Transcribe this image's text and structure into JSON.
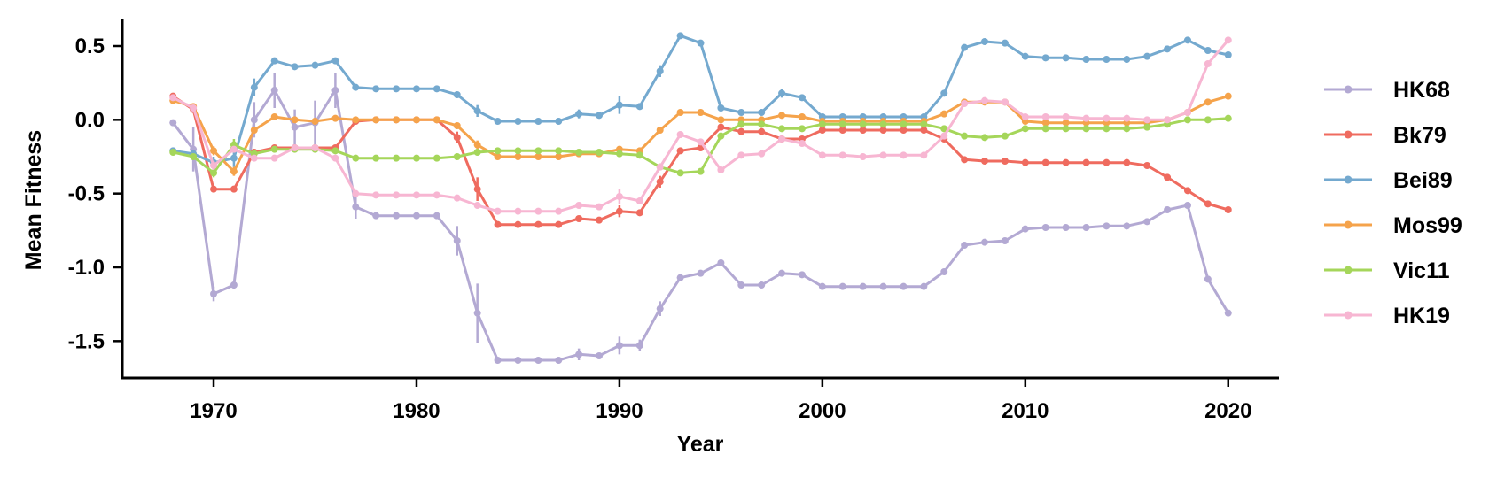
{
  "chart_data": {
    "type": "line",
    "title": "",
    "xlabel": "Year",
    "ylabel": "Mean Fitness",
    "xlim": [
      1965.5,
      2022.5
    ],
    "ylim": [
      -1.75,
      0.68
    ],
    "x_ticks": [
      1970,
      1980,
      1990,
      2000,
      2010,
      2020
    ],
    "x_tick_labels": [
      "1970",
      "1980",
      "1990",
      "2000",
      "2010",
      "2020"
    ],
    "y_ticks": [
      0.5,
      0.0,
      -0.5,
      -1.0,
      -1.5
    ],
    "y_tick_labels": [
      "0.5",
      "0.0",
      "-0.5",
      "-1.0",
      "-1.5"
    ],
    "grid": false,
    "legend_position": "right",
    "x": [
      1968,
      1969,
      1970,
      1971,
      1972,
      1973,
      1974,
      1975,
      1976,
      1977,
      1978,
      1979,
      1980,
      1981,
      1982,
      1983,
      1984,
      1985,
      1986,
      1987,
      1988,
      1989,
      1990,
      1991,
      1992,
      1993,
      1994,
      1995,
      1996,
      1997,
      1998,
      1999,
      2000,
      2001,
      2002,
      2003,
      2004,
      2005,
      2006,
      2007,
      2008,
      2009,
      2010,
      2011,
      2012,
      2013,
      2014,
      2015,
      2016,
      2017,
      2018,
      2019,
      2020
    ],
    "series": [
      {
        "name": "HK68",
        "color": "#b3a9d3",
        "values": [
          -0.02,
          -0.2,
          -1.18,
          -1.12,
          0.0,
          0.2,
          -0.05,
          -0.02,
          0.2,
          -0.59,
          -0.65,
          -0.65,
          -0.65,
          -0.65,
          -0.82,
          -1.31,
          -1.63,
          -1.63,
          -1.63,
          -1.63,
          -1.59,
          -1.6,
          -1.53,
          -1.53,
          -1.28,
          -1.07,
          -1.04,
          -0.97,
          -1.12,
          -1.12,
          -1.04,
          -1.05,
          -1.13,
          -1.13,
          -1.13,
          -1.13,
          -1.13,
          -1.13,
          -1.03,
          -0.85,
          -0.83,
          -0.82,
          -0.74,
          -0.73,
          -0.73,
          -0.73,
          -0.72,
          -0.72,
          -0.69,
          -0.61,
          -0.58,
          -1.08,
          -1.31
        ],
        "errors": [
          0.02,
          0.15,
          0.05,
          0.03,
          0.12,
          0.12,
          0.12,
          0.15,
          0.12,
          0.08,
          0.02,
          0.02,
          0.02,
          0.02,
          0.1,
          0.2,
          0.02,
          0.02,
          0.02,
          0.02,
          0.04,
          0.02,
          0.06,
          0.04,
          0.05,
          0.02,
          0.02,
          0.02,
          0.02,
          0.02,
          0.02,
          0.02,
          0.02,
          0.02,
          0.02,
          0.02,
          0.02,
          0.02,
          0.02,
          0.02,
          0.02,
          0.02,
          0.02,
          0.02,
          0.02,
          0.02,
          0.02,
          0.02,
          0.02,
          0.02,
          0.02,
          0.02,
          0.02
        ]
      },
      {
        "name": "Bk79",
        "color": "#ef6b5f",
        "values": [
          0.16,
          0.07,
          -0.47,
          -0.47,
          -0.22,
          -0.19,
          -0.19,
          -0.19,
          -0.19,
          -0.01,
          0.0,
          0.0,
          0.0,
          0.0,
          -0.12,
          -0.47,
          -0.71,
          -0.71,
          -0.71,
          -0.71,
          -0.67,
          -0.68,
          -0.62,
          -0.63,
          -0.42,
          -0.21,
          -0.19,
          -0.05,
          -0.08,
          -0.08,
          -0.13,
          -0.13,
          -0.07,
          -0.07,
          -0.07,
          -0.07,
          -0.07,
          -0.07,
          -0.13,
          -0.27,
          -0.28,
          -0.28,
          -0.29,
          -0.29,
          -0.29,
          -0.29,
          -0.29,
          -0.29,
          -0.31,
          -0.39,
          -0.48,
          -0.57,
          -0.61
        ],
        "errors": [
          0.02,
          0.02,
          0.02,
          0.02,
          0.02,
          0.02,
          0.02,
          0.02,
          0.02,
          0.02,
          0.02,
          0.02,
          0.02,
          0.02,
          0.04,
          0.08,
          0.02,
          0.02,
          0.02,
          0.02,
          0.02,
          0.02,
          0.04,
          0.02,
          0.04,
          0.02,
          0.02,
          0.02,
          0.02,
          0.02,
          0.02,
          0.02,
          0.02,
          0.02,
          0.02,
          0.02,
          0.02,
          0.02,
          0.02,
          0.02,
          0.02,
          0.02,
          0.02,
          0.02,
          0.02,
          0.02,
          0.02,
          0.02,
          0.02,
          0.02,
          0.02,
          0.02,
          0.02
        ]
      },
      {
        "name": "Bei89",
        "color": "#74a9cf",
        "values": [
          -0.21,
          -0.23,
          -0.29,
          -0.26,
          0.22,
          0.4,
          0.36,
          0.37,
          0.4,
          0.22,
          0.21,
          0.21,
          0.21,
          0.21,
          0.17,
          0.06,
          -0.01,
          -0.01,
          -0.01,
          -0.01,
          0.04,
          0.03,
          0.1,
          0.09,
          0.33,
          0.57,
          0.52,
          0.08,
          0.05,
          0.05,
          0.18,
          0.15,
          0.02,
          0.02,
          0.02,
          0.02,
          0.02,
          0.02,
          0.18,
          0.49,
          0.53,
          0.52,
          0.43,
          0.42,
          0.42,
          0.41,
          0.41,
          0.41,
          0.43,
          0.48,
          0.54,
          0.47,
          0.44
        ],
        "errors": [
          0.02,
          0.02,
          0.04,
          0.06,
          0.06,
          0.02,
          0.02,
          0.02,
          0.02,
          0.02,
          0.02,
          0.02,
          0.02,
          0.02,
          0.02,
          0.04,
          0.02,
          0.02,
          0.02,
          0.02,
          0.03,
          0.02,
          0.06,
          0.02,
          0.04,
          0.02,
          0.02,
          0.02,
          0.02,
          0.02,
          0.03,
          0.02,
          0.02,
          0.02,
          0.02,
          0.02,
          0.02,
          0.02,
          0.02,
          0.02,
          0.02,
          0.02,
          0.02,
          0.02,
          0.02,
          0.02,
          0.02,
          0.02,
          0.02,
          0.02,
          0.02,
          0.02,
          0.02
        ]
      },
      {
        "name": "Mos99",
        "color": "#f5a34b",
        "values": [
          0.13,
          0.09,
          -0.21,
          -0.35,
          -0.07,
          0.02,
          0.0,
          -0.01,
          0.01,
          0.0,
          0.0,
          0.0,
          0.0,
          0.0,
          -0.04,
          -0.17,
          -0.25,
          -0.25,
          -0.25,
          -0.25,
          -0.23,
          -0.23,
          -0.2,
          -0.21,
          -0.07,
          0.05,
          0.05,
          0.0,
          0.0,
          0.0,
          0.03,
          0.02,
          -0.01,
          -0.01,
          -0.01,
          -0.01,
          -0.01,
          -0.01,
          0.04,
          0.12,
          0.12,
          0.12,
          -0.01,
          -0.02,
          -0.02,
          -0.02,
          -0.02,
          -0.02,
          -0.02,
          0.0,
          0.05,
          0.12,
          0.16
        ],
        "errors": [
          0.02,
          0.02,
          0.03,
          0.03,
          0.02,
          0.02,
          0.02,
          0.02,
          0.02,
          0.02,
          0.02,
          0.02,
          0.02,
          0.02,
          0.02,
          0.03,
          0.02,
          0.02,
          0.02,
          0.02,
          0.02,
          0.02,
          0.02,
          0.02,
          0.02,
          0.02,
          0.02,
          0.02,
          0.02,
          0.02,
          0.02,
          0.02,
          0.02,
          0.02,
          0.02,
          0.02,
          0.02,
          0.02,
          0.02,
          0.02,
          0.02,
          0.02,
          0.02,
          0.02,
          0.02,
          0.02,
          0.02,
          0.02,
          0.02,
          0.02,
          0.02,
          0.02,
          0.02
        ]
      },
      {
        "name": "Vic11",
        "color": "#a5d65a",
        "values": [
          -0.22,
          -0.25,
          -0.36,
          -0.17,
          -0.23,
          -0.2,
          -0.2,
          -0.2,
          -0.21,
          -0.26,
          -0.26,
          -0.26,
          -0.26,
          -0.26,
          -0.25,
          -0.22,
          -0.21,
          -0.21,
          -0.21,
          -0.21,
          -0.22,
          -0.22,
          -0.23,
          -0.24,
          -0.32,
          -0.36,
          -0.35,
          -0.11,
          -0.03,
          -0.03,
          -0.06,
          -0.06,
          -0.03,
          -0.03,
          -0.03,
          -0.03,
          -0.03,
          -0.03,
          -0.06,
          -0.11,
          -0.12,
          -0.11,
          -0.06,
          -0.06,
          -0.06,
          -0.06,
          -0.06,
          -0.06,
          -0.05,
          -0.03,
          0.0,
          0.0,
          0.01
        ],
        "errors": [
          0.02,
          0.02,
          0.03,
          0.04,
          0.02,
          0.02,
          0.02,
          0.02,
          0.02,
          0.02,
          0.02,
          0.02,
          0.02,
          0.02,
          0.02,
          0.02,
          0.02,
          0.02,
          0.02,
          0.02,
          0.02,
          0.02,
          0.02,
          0.02,
          0.02,
          0.02,
          0.02,
          0.02,
          0.02,
          0.02,
          0.02,
          0.02,
          0.02,
          0.02,
          0.02,
          0.02,
          0.02,
          0.02,
          0.02,
          0.02,
          0.02,
          0.02,
          0.02,
          0.02,
          0.02,
          0.02,
          0.02,
          0.02,
          0.02,
          0.02,
          0.02,
          0.02,
          0.02
        ]
      },
      {
        "name": "HK19",
        "color": "#f7b6d2",
        "values": [
          0.15,
          0.08,
          -0.31,
          -0.2,
          -0.26,
          -0.26,
          -0.19,
          -0.19,
          -0.26,
          -0.5,
          -0.51,
          -0.51,
          -0.51,
          -0.51,
          -0.53,
          -0.58,
          -0.62,
          -0.62,
          -0.62,
          -0.62,
          -0.58,
          -0.59,
          -0.52,
          -0.55,
          -0.32,
          -0.1,
          -0.15,
          -0.34,
          -0.24,
          -0.23,
          -0.13,
          -0.16,
          -0.24,
          -0.24,
          -0.25,
          -0.24,
          -0.24,
          -0.24,
          -0.11,
          0.11,
          0.13,
          0.12,
          0.02,
          0.02,
          0.02,
          0.01,
          0.01,
          0.01,
          0.0,
          0.0,
          0.05,
          0.38,
          0.54
        ],
        "errors": [
          0.02,
          0.02,
          0.03,
          0.02,
          0.02,
          0.02,
          0.02,
          0.02,
          0.02,
          0.02,
          0.02,
          0.02,
          0.02,
          0.02,
          0.02,
          0.02,
          0.02,
          0.02,
          0.02,
          0.02,
          0.02,
          0.02,
          0.05,
          0.02,
          0.02,
          0.02,
          0.02,
          0.02,
          0.02,
          0.02,
          0.02,
          0.02,
          0.02,
          0.02,
          0.02,
          0.02,
          0.02,
          0.02,
          0.02,
          0.02,
          0.02,
          0.02,
          0.02,
          0.02,
          0.02,
          0.02,
          0.02,
          0.02,
          0.02,
          0.02,
          0.02,
          0.02,
          0.02
        ]
      }
    ]
  }
}
